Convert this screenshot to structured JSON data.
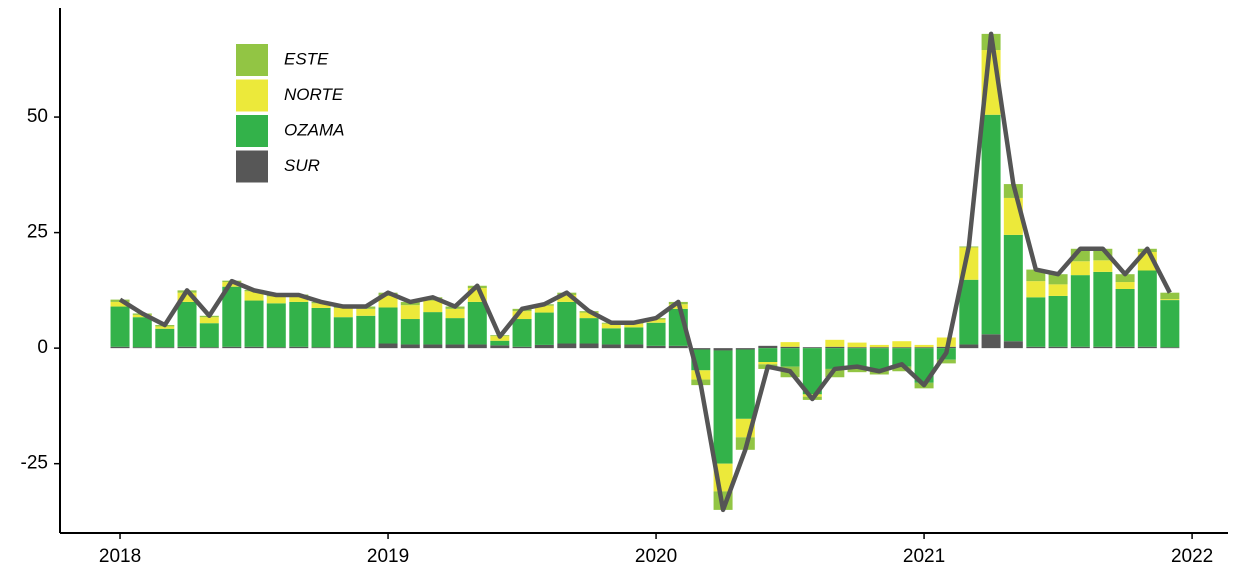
{
  "chart_data": {
    "type": "stacked-bar-line",
    "x": [
      2018,
      2018.083,
      2018.167,
      2018.25,
      2018.333,
      2018.417,
      2018.5,
      2018.583,
      2018.667,
      2018.75,
      2018.833,
      2018.917,
      2019,
      2019.083,
      2019.167,
      2019.25,
      2019.333,
      2019.417,
      2019.5,
      2019.583,
      2019.667,
      2019.75,
      2019.833,
      2019.917,
      2020,
      2020.083,
      2020.167,
      2020.25,
      2020.333,
      2020.417,
      2020.5,
      2020.583,
      2020.667,
      2020.75,
      2020.833,
      2020.917,
      2021,
      2021.083,
      2021.167,
      2021.25,
      2021.333,
      2021.417,
      2021.5,
      2021.583,
      2021.667,
      2021.75,
      2021.833,
      2021.917
    ],
    "series": [
      {
        "name": "SUR",
        "color": "#575757",
        "values": [
          0.3,
          0.2,
          0.2,
          0.3,
          0.2,
          0.3,
          0.3,
          0.2,
          0.3,
          0.2,
          0.2,
          0.2,
          1,
          0.8,
          0.8,
          0.8,
          0.8,
          0.6,
          0.3,
          0.7,
          1,
          1,
          0.8,
          0.8,
          0.5,
          0.5,
          -0.3,
          -0.5,
          -0.3,
          0.5,
          0.3,
          0.2,
          0.3,
          0.2,
          0.2,
          0.2,
          0.2,
          0.3,
          0.8,
          3,
          1.5,
          0.3,
          0.3,
          0.3,
          0.3,
          0.3,
          0.3,
          0.2
        ]
      },
      {
        "name": "OZAMA",
        "color": "#33b24a",
        "values": [
          8.7,
          6.5,
          4,
          9.7,
          5.2,
          13,
          10,
          9.5,
          9.7,
          8.5,
          6.5,
          6.8,
          7.8,
          5.5,
          7,
          5.7,
          9.2,
          1,
          6,
          7,
          9,
          5.5,
          3.5,
          3.7,
          5,
          8,
          -4.5,
          -24.5,
          -15,
          -3,
          -4,
          -10,
          -4.5,
          -4,
          -4.8,
          -4,
          -7.5,
          -2.5,
          14,
          47.5,
          23,
          10.7,
          11,
          15.5,
          16.2,
          12.5,
          16.5,
          10.2
        ]
      },
      {
        "name": "NORTE",
        "color": "#ece93a",
        "values": [
          1,
          0.5,
          0.5,
          2,
          1.3,
          1,
          2,
          1.5,
          1.3,
          1,
          2,
          1.5,
          2.5,
          3,
          2.5,
          2,
          3,
          1,
          1.7,
          1.5,
          1.5,
          1.2,
          1,
          0.8,
          0.7,
          1,
          -2,
          -6,
          -4,
          -0.5,
          1,
          -0.5,
          1.5,
          1,
          0.5,
          1.3,
          0.5,
          2,
          7,
          14,
          8,
          3.5,
          2.5,
          3,
          2.5,
          1.5,
          4,
          0.2
        ]
      },
      {
        "name": "ESTE",
        "color": "#92c544",
        "values": [
          0.5,
          0.3,
          0.3,
          0.5,
          0.3,
          0.3,
          0.3,
          0.3,
          0.3,
          0.3,
          0.3,
          0.5,
          0.7,
          0.7,
          0.7,
          0.5,
          0.5,
          0.2,
          0.5,
          0.3,
          0.5,
          0.3,
          0.2,
          0.2,
          0.3,
          0.5,
          -1.2,
          -4,
          -2.7,
          -1,
          -2.3,
          -0.7,
          -1.8,
          -1.2,
          -0.9,
          -1,
          -1.2,
          -0.8,
          0.2,
          3.5,
          3,
          2.5,
          2.2,
          2.7,
          2.5,
          1.7,
          0.7,
          1.4
        ]
      }
    ],
    "line": {
      "color": "#555555",
      "values": [
        10.5,
        7.5,
        5,
        12.5,
        7,
        14.5,
        12.5,
        11.5,
        11.5,
        10,
        9,
        9,
        12,
        10,
        11,
        9,
        13.5,
        2.5,
        8.5,
        9.5,
        12,
        8,
        5.5,
        5.5,
        6.5,
        10,
        -8,
        -35,
        -22,
        -4,
        -5,
        -11,
        -4.5,
        -4,
        -5,
        -3.5,
        -8,
        -1,
        22,
        68,
        35.5,
        17,
        16,
        21.5,
        21.5,
        16,
        21.5,
        12
      ]
    },
    "xlim": [
      2017.776,
      2022.134
    ],
    "xticks": [
      2018,
      2019,
      2020,
      2021,
      2022
    ],
    "ylim": [
      -40,
      73.6
    ],
    "yticks": [
      -25,
      0,
      25,
      50
    ],
    "legend_order": [
      "ESTE",
      "NORTE",
      "OZAMA",
      "SUR"
    ],
    "legend": "top-left"
  }
}
